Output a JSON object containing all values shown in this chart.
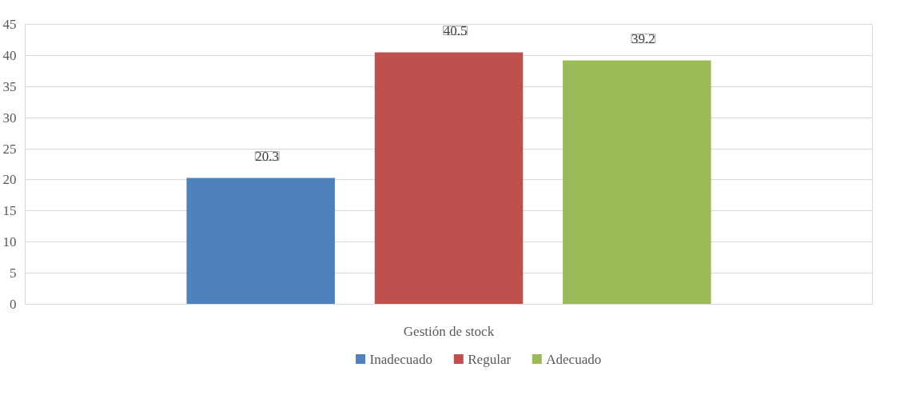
{
  "chart_data": {
    "type": "bar",
    "categories": [
      "Gestión de stock"
    ],
    "series": [
      {
        "name": "Inadecuado",
        "color": "#4f81bd",
        "values": [
          20.3
        ]
      },
      {
        "name": "Regular",
        "color": "#c0504d",
        "values": [
          40.5
        ]
      },
      {
        "name": "Adecuado",
        "color": "#9bbb59",
        "values": [
          39.2
        ]
      }
    ],
    "ylim": [
      0,
      45
    ],
    "yticks": [
      0,
      5,
      10,
      15,
      20,
      25,
      30,
      35,
      40,
      45
    ],
    "grid": "y",
    "legend": "bottom",
    "data_labels": true
  }
}
